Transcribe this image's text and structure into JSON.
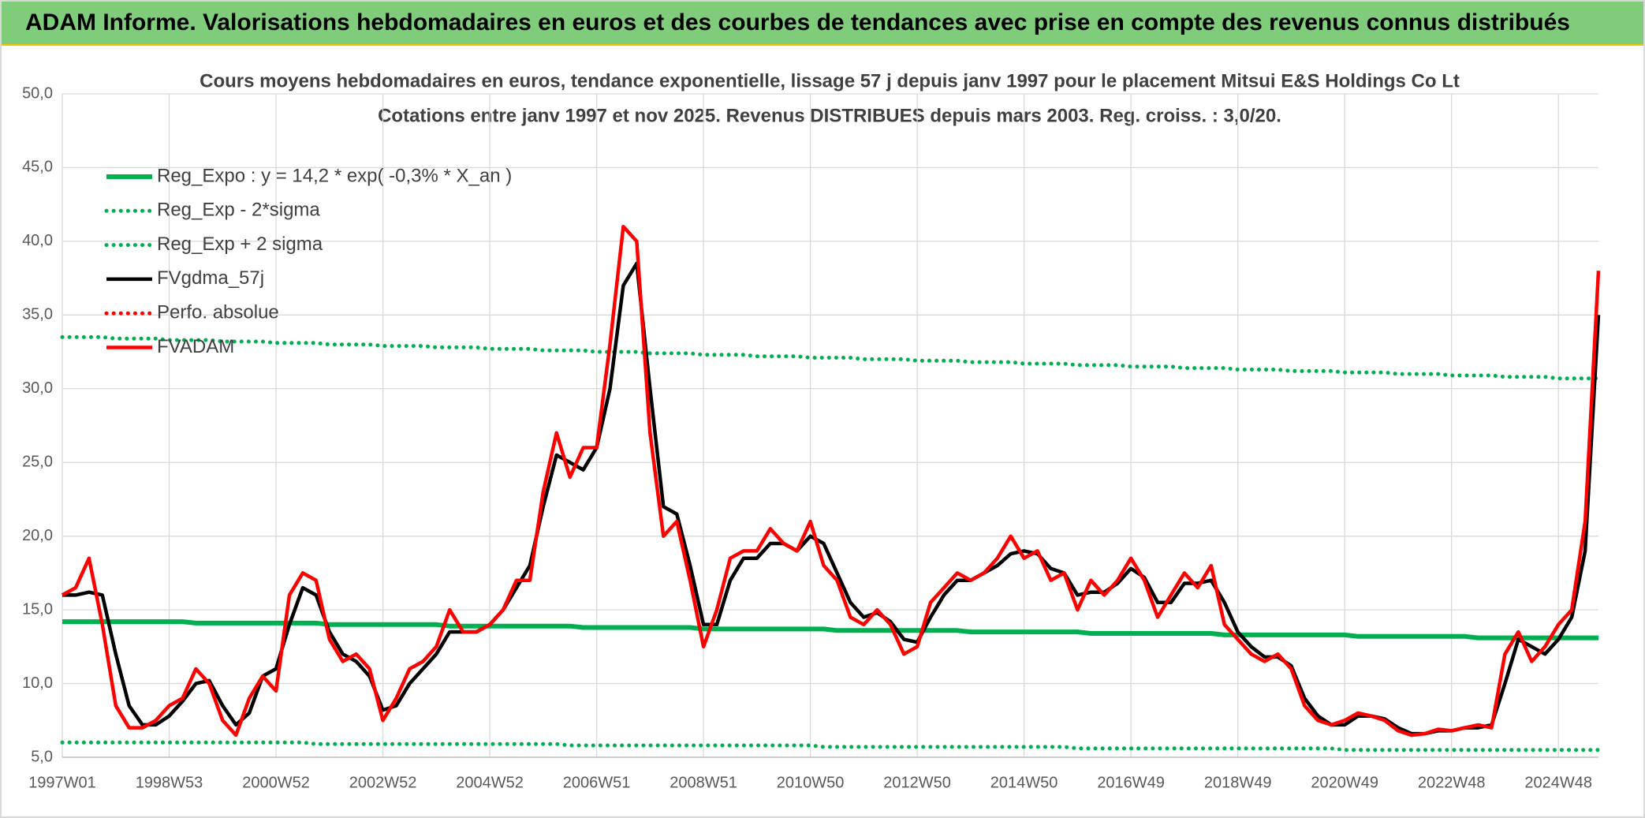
{
  "header": {
    "title": "ADAM Informe. Valorisations hebdomadaires en euros et des courbes de tendances avec prise en compte des revenus connus distribués"
  },
  "chart_data": {
    "type": "line",
    "title": "Cours moyens hebdomadaires en euros, tendance exponentielle, lissage 57 j depuis janv 1997 pour le placement Mitsui E&S Holdings Co Lt",
    "subtitle": "Cotations entre janv 1997 et nov 2025. Revenus DISTRIBUES depuis mars 2003. Reg. croiss. : 3,0/20.",
    "categories": [
      "1997W01",
      null,
      null,
      null,
      null,
      null,
      null,
      null,
      "1998W53",
      null,
      null,
      null,
      null,
      null,
      null,
      null,
      "2000W52",
      null,
      null,
      null,
      null,
      null,
      null,
      null,
      "2002W52",
      null,
      null,
      null,
      null,
      null,
      null,
      null,
      "2004W52",
      null,
      null,
      null,
      null,
      null,
      null,
      null,
      "2006W51",
      null,
      null,
      null,
      null,
      null,
      null,
      null,
      "2008W51",
      null,
      null,
      null,
      null,
      null,
      null,
      null,
      "2010W50",
      null,
      null,
      null,
      null,
      null,
      null,
      null,
      "2012W50",
      null,
      null,
      null,
      null,
      null,
      null,
      null,
      "2014W50",
      null,
      null,
      null,
      null,
      null,
      null,
      null,
      "2016W49",
      null,
      null,
      null,
      null,
      null,
      null,
      null,
      "2018W49",
      null,
      null,
      null,
      null,
      null,
      null,
      null,
      "2020W49",
      null,
      null,
      null,
      null,
      null,
      null,
      null,
      "2022W48",
      null,
      null,
      null,
      null,
      null,
      null,
      null,
      "2024W48",
      null,
      null,
      null
    ],
    "ylim": [
      5,
      50
    ],
    "yticks": [
      {
        "value": 5,
        "label": "5,0"
      },
      {
        "value": 10,
        "label": "10,0"
      },
      {
        "value": 15,
        "label": "15,0"
      },
      {
        "value": 20,
        "label": "20,0"
      },
      {
        "value": 25,
        "label": "25,0"
      },
      {
        "value": 30,
        "label": "30,0"
      },
      {
        "value": 35,
        "label": "35,0"
      },
      {
        "value": 40,
        "label": "40,0"
      },
      {
        "value": 45,
        "label": "45,0"
      },
      {
        "value": 50,
        "label": "50,0"
      }
    ],
    "grid": true,
    "legend": "top-left",
    "series": [
      {
        "name": "Reg_Expo : y = 14,2 * exp( -0,3% *  X_an )",
        "color": "#00b050",
        "style": "solid",
        "values": [
          14.2,
          14.2,
          14.2,
          14.2,
          14.2,
          14.2,
          14.2,
          14.2,
          14.2,
          14.2,
          14.1,
          14.1,
          14.1,
          14.1,
          14.1,
          14.1,
          14.1,
          14.1,
          14.1,
          14.1,
          14.0,
          14.0,
          14.0,
          14.0,
          14.0,
          14.0,
          14.0,
          14.0,
          14.0,
          13.9,
          13.9,
          13.9,
          13.9,
          13.9,
          13.9,
          13.9,
          13.9,
          13.9,
          13.9,
          13.8,
          13.8,
          13.8,
          13.8,
          13.8,
          13.8,
          13.8,
          13.8,
          13.8,
          13.7,
          13.7,
          13.7,
          13.7,
          13.7,
          13.7,
          13.7,
          13.7,
          13.7,
          13.7,
          13.6,
          13.6,
          13.6,
          13.6,
          13.6,
          13.6,
          13.6,
          13.6,
          13.6,
          13.6,
          13.5,
          13.5,
          13.5,
          13.5,
          13.5,
          13.5,
          13.5,
          13.5,
          13.5,
          13.4,
          13.4,
          13.4,
          13.4,
          13.4,
          13.4,
          13.4,
          13.4,
          13.4,
          13.4,
          13.3,
          13.3,
          13.3,
          13.3,
          13.3,
          13.3,
          13.3,
          13.3,
          13.3,
          13.3,
          13.2,
          13.2,
          13.2,
          13.2,
          13.2,
          13.2,
          13.2,
          13.2,
          13.2,
          13.1,
          13.1,
          13.1,
          13.1,
          13.1,
          13.1,
          13.1,
          13.1,
          13.1,
          13.1
        ]
      },
      {
        "name": "Reg_Exp - 2*sigma",
        "color": "#00b050",
        "style": "dotted",
        "values": [
          6.0,
          6.0,
          6.0,
          6.0,
          6.0,
          6.0,
          6.0,
          6.0,
          6.0,
          6.0,
          6.0,
          6.0,
          6.0,
          6.0,
          6.0,
          6.0,
          6.0,
          6.0,
          6.0,
          5.9,
          5.9,
          5.9,
          5.9,
          5.9,
          5.9,
          5.9,
          5.9,
          5.9,
          5.9,
          5.9,
          5.9,
          5.9,
          5.9,
          5.9,
          5.9,
          5.9,
          5.9,
          5.9,
          5.8,
          5.8,
          5.8,
          5.8,
          5.8,
          5.8,
          5.8,
          5.8,
          5.8,
          5.8,
          5.8,
          5.8,
          5.8,
          5.8,
          5.8,
          5.8,
          5.8,
          5.8,
          5.8,
          5.7,
          5.7,
          5.7,
          5.7,
          5.7,
          5.7,
          5.7,
          5.7,
          5.7,
          5.7,
          5.7,
          5.7,
          5.7,
          5.7,
          5.7,
          5.7,
          5.7,
          5.7,
          5.7,
          5.6,
          5.6,
          5.6,
          5.6,
          5.6,
          5.6,
          5.6,
          5.6,
          5.6,
          5.6,
          5.6,
          5.6,
          5.6,
          5.6,
          5.6,
          5.6,
          5.6,
          5.6,
          5.6,
          5.6,
          5.5,
          5.5,
          5.5,
          5.5,
          5.5,
          5.5,
          5.5,
          5.5,
          5.5,
          5.5,
          5.5,
          5.5,
          5.5,
          5.5,
          5.5,
          5.5,
          5.5,
          5.5,
          5.5,
          5.5
        ]
      },
      {
        "name": "Reg_Exp + 2 sigma",
        "color": "#00b050",
        "style": "dotted",
        "values": [
          33.5,
          33.5,
          33.5,
          33.5,
          33.4,
          33.4,
          33.4,
          33.4,
          33.3,
          33.3,
          33.3,
          33.3,
          33.2,
          33.2,
          33.2,
          33.2,
          33.1,
          33.1,
          33.1,
          33.1,
          33.0,
          33.0,
          33.0,
          33.0,
          32.9,
          32.9,
          32.9,
          32.9,
          32.8,
          32.8,
          32.8,
          32.8,
          32.7,
          32.7,
          32.7,
          32.7,
          32.6,
          32.6,
          32.6,
          32.6,
          32.5,
          32.5,
          32.5,
          32.5,
          32.4,
          32.4,
          32.4,
          32.4,
          32.3,
          32.3,
          32.3,
          32.3,
          32.2,
          32.2,
          32.2,
          32.2,
          32.1,
          32.1,
          32.1,
          32.1,
          32.0,
          32.0,
          32.0,
          32.0,
          31.9,
          31.9,
          31.9,
          31.9,
          31.8,
          31.8,
          31.8,
          31.8,
          31.7,
          31.7,
          31.7,
          31.7,
          31.6,
          31.6,
          31.6,
          31.6,
          31.5,
          31.5,
          31.5,
          31.5,
          31.4,
          31.4,
          31.4,
          31.4,
          31.3,
          31.3,
          31.3,
          31.3,
          31.2,
          31.2,
          31.2,
          31.2,
          31.1,
          31.1,
          31.1,
          31.1,
          31.0,
          31.0,
          31.0,
          31.0,
          30.9,
          30.9,
          30.9,
          30.9,
          30.8,
          30.8,
          30.8,
          30.8,
          30.7,
          30.7,
          30.7,
          30.7
        ]
      },
      {
        "name": "FVgdma_57j",
        "color": "#000000",
        "style": "solid",
        "values": [
          16,
          16,
          16.2,
          16,
          12,
          8.5,
          7.2,
          7.2,
          7.8,
          8.8,
          10,
          10.2,
          8.5,
          7.2,
          8,
          10.5,
          11,
          14,
          16.5,
          16,
          13.5,
          12,
          11.5,
          10.5,
          8.2,
          8.5,
          10,
          11,
          12,
          13.5,
          13.5,
          13.5,
          14,
          15,
          16.5,
          18,
          22,
          25.5,
          25,
          24.5,
          26,
          30,
          37,
          38.5,
          30,
          22,
          21.5,
          18,
          14,
          14,
          17,
          18.5,
          18.5,
          19.5,
          19.5,
          19,
          20,
          19.5,
          17.5,
          15.5,
          14.5,
          14.8,
          14.2,
          13,
          12.8,
          14.5,
          16,
          17,
          17,
          17.5,
          18,
          18.8,
          19,
          18.8,
          17.8,
          17.5,
          16,
          16.2,
          16.2,
          16.8,
          17.8,
          17.2,
          15.5,
          15.5,
          16.8,
          16.8,
          17,
          15.5,
          13.5,
          12.5,
          11.8,
          11.8,
          11.2,
          9,
          7.8,
          7.2,
          7.2,
          7.8,
          7.8,
          7.6,
          7,
          6.6,
          6.6,
          6.8,
          6.8,
          7,
          7,
          7.2,
          10,
          13,
          12.5,
          12,
          13,
          14.5,
          19,
          35
        ]
      },
      {
        "name": "Perfo. absolue",
        "color": "#ff0000",
        "style": "dotted"
      },
      {
        "name": "FVADAM",
        "color": "#ff0000",
        "style": "solid",
        "values": [
          16,
          16.5,
          18.5,
          14,
          8.5,
          7,
          7,
          7.5,
          8.5,
          9,
          11,
          10,
          7.5,
          6.5,
          9,
          10.5,
          9.5,
          16,
          17.5,
          17,
          13,
          11.5,
          12,
          11,
          7.5,
          9,
          11,
          11.5,
          12.5,
          15,
          13.5,
          13.5,
          14,
          15,
          17,
          17,
          23,
          27,
          24,
          26,
          26,
          33,
          41,
          40,
          27,
          20,
          21,
          17,
          12.5,
          15,
          18.5,
          19,
          19,
          20.5,
          19.5,
          19,
          21,
          18,
          17,
          14.5,
          14,
          15,
          14,
          12,
          12.5,
          15.5,
          16.5,
          17.5,
          17,
          17.5,
          18.5,
          20,
          18.5,
          19,
          17,
          17.5,
          15,
          17,
          16,
          17,
          18.5,
          17,
          14.5,
          16,
          17.5,
          16.5,
          18,
          14,
          13,
          12,
          11.5,
          12,
          11,
          8.5,
          7.5,
          7.2,
          7.5,
          8,
          7.8,
          7.5,
          6.8,
          6.5,
          6.6,
          6.9,
          6.8,
          7,
          7.2,
          7,
          12,
          13.5,
          11.5,
          12.5,
          14,
          15,
          21,
          38
        ]
      }
    ]
  }
}
